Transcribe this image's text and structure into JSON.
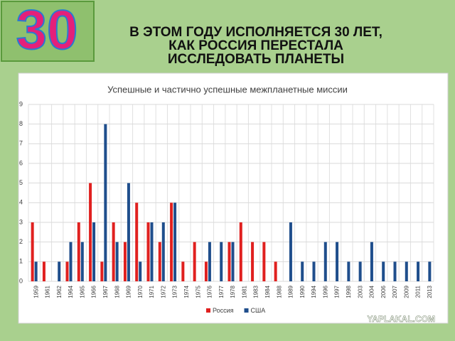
{
  "logo": "30",
  "header": {
    "title": [
      "В ЭТОМ ГОДУ ИСПОЛНЯЕТСЯ 30 ЛЕТ,",
      "КАК РОССИЯ ПЕРЕСТАЛА",
      "ИССЛЕДОВАТЬ ПЛАНЕТЫ"
    ]
  },
  "watermark": "YAPLAKAL.COM",
  "chart_data": {
    "type": "bar",
    "title": "Успешные и частично успешные межпланетные миссии",
    "categories": [
      "1959",
      "1961",
      "1962",
      "1964",
      "1965",
      "1966",
      "1967",
      "1968",
      "1969",
      "1970",
      "1971",
      "1972",
      "1973",
      "1974",
      "1975",
      "1976",
      "1977",
      "1978",
      "1981",
      "1983",
      "1984",
      "1988",
      "1989",
      "1990",
      "1994",
      "1996",
      "1997",
      "1998",
      "2003",
      "2004",
      "2006",
      "2007",
      "2009",
      "2011",
      "2013"
    ],
    "series": [
      {
        "name": "Россия",
        "color": "#e0201f",
        "values": [
          3,
          1,
          0,
          1,
          3,
          5,
          1,
          3,
          2,
          4,
          3,
          2,
          4,
          1,
          2,
          1,
          0,
          2,
          3,
          2,
          2,
          1,
          0,
          0,
          0,
          0,
          0,
          0,
          0,
          0,
          0,
          0,
          0,
          0,
          0
        ]
      },
      {
        "name": "США",
        "color": "#1f4e8c",
        "values": [
          1,
          0,
          1,
          2,
          2,
          3,
          8,
          2,
          5,
          1,
          3,
          3,
          4,
          0,
          0,
          2,
          2,
          2,
          0,
          0,
          0,
          0,
          3,
          1,
          1,
          2,
          2,
          1,
          1,
          2,
          1,
          1,
          1,
          1,
          1
        ]
      }
    ],
    "ylim": [
      0,
      9
    ],
    "yticks": [
      0,
      1,
      2,
      3,
      4,
      5,
      6,
      7,
      8,
      9
    ],
    "grid": true,
    "legend": "bottom"
  }
}
